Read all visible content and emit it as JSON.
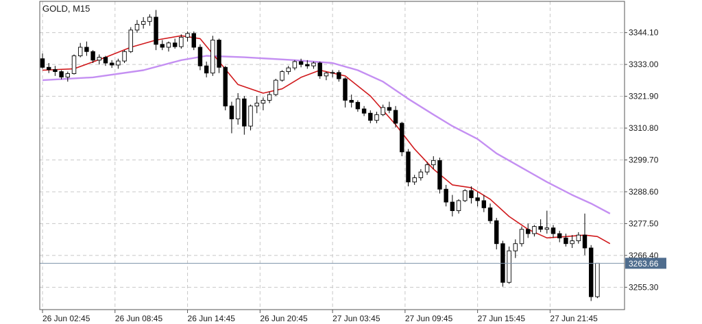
{
  "colors": {
    "background": "#ffffff",
    "axis": "#555555",
    "grid": "#c8c8c8",
    "candle_up_fill": "#ffffff",
    "candle_down_fill": "#000000",
    "candle_stroke": "#000000",
    "ma_fast": "#d0181b",
    "ma_slow": "#c48ff2",
    "bid_line": "#7d93aa",
    "bid_badge": "#4f6d8e",
    "bid_text": "#ffffff"
  },
  "chart_data": {
    "type": "candlestick",
    "title": "GOLD, M15",
    "ylim": [
      3247.5,
      3355.0
    ],
    "x_range": [
      0,
      91
    ],
    "y_ticks": [
      3344.1,
      3333.0,
      3321.9,
      3310.8,
      3299.7,
      3288.6,
      3277.5,
      3266.4,
      3255.3
    ],
    "y_tick_labels": [
      "3344.10",
      "3333.00",
      "3321.90",
      "3310.80",
      "3299.70",
      "3288.60",
      "3277.50",
      "3266.40",
      "3255.30"
    ],
    "x_ticks": [
      0,
      11.5,
      23,
      34.5,
      46,
      57.5,
      69,
      80.5
    ],
    "x_tick_labels": [
      "26 Jun 02:45",
      "26 Jun 08:45",
      "26 Jun 14:45",
      "26 Jun 20:45",
      "27 Jun 03:45",
      "27 Jun 09:45",
      "27 Jun 15:45",
      "27 Jun 21:45"
    ],
    "grid": true,
    "current_price": 3263.66,
    "current_price_label": "3263.66",
    "candles": [
      [
        3335.0,
        3336.8,
        3331.5,
        3332.0
      ],
      [
        3332.0,
        3333.5,
        3330.0,
        3331.2
      ],
      [
        3331.2,
        3332.5,
        3329.0,
        3330.5
      ],
      [
        3330.5,
        3331.0,
        3327.8,
        3328.6
      ],
      [
        3328.6,
        3330.5,
        3327.0,
        3329.8
      ],
      [
        3329.8,
        3336.5,
        3329.5,
        3336.0
      ],
      [
        3336.0,
        3340.5,
        3335.5,
        3339.0
      ],
      [
        3339.0,
        3341.0,
        3336.0,
        3337.5
      ],
      [
        3337.5,
        3338.0,
        3333.5,
        3334.5
      ],
      [
        3334.5,
        3336.5,
        3333.0,
        3335.5
      ],
      [
        3335.5,
        3336.0,
        3332.5,
        3333.5
      ],
      [
        3333.5,
        3334.5,
        3331.8,
        3332.8
      ],
      [
        3332.8,
        3335.0,
        3331.5,
        3334.2
      ],
      [
        3334.2,
        3338.0,
        3333.5,
        3337.5
      ],
      [
        3337.5,
        3346.0,
        3337.0,
        3345.0
      ],
      [
        3345.0,
        3348.5,
        3344.0,
        3347.0
      ],
      [
        3347.0,
        3349.5,
        3345.5,
        3348.0
      ],
      [
        3348.0,
        3350.5,
        3346.5,
        3349.5
      ],
      [
        3349.5,
        3352.0,
        3338.0,
        3340.0
      ],
      [
        3340.0,
        3341.5,
        3338.0,
        3339.0
      ],
      [
        3339.0,
        3341.0,
        3337.5,
        3340.5
      ],
      [
        3340.5,
        3342.0,
        3338.5,
        3339.2
      ],
      [
        3339.2,
        3343.5,
        3338.5,
        3342.5
      ],
      [
        3342.5,
        3344.5,
        3341.0,
        3343.8
      ],
      [
        3343.8,
        3344.5,
        3338.0,
        3339.0
      ],
      [
        3339.0,
        3340.0,
        3331.0,
        3332.5
      ],
      [
        3332.5,
        3334.0,
        3328.5,
        3330.0
      ],
      [
        3330.0,
        3343.0,
        3329.0,
        3341.5
      ],
      [
        3341.5,
        3342.0,
        3330.0,
        3332.0
      ],
      [
        3332.0,
        3332.5,
        3317.0,
        3318.5
      ],
      [
        3318.5,
        3320.0,
        3309.0,
        3314.0
      ],
      [
        3314.0,
        3323.0,
        3312.0,
        3321.0
      ],
      [
        3321.0,
        3322.0,
        3308.5,
        3311.5
      ],
      [
        3311.5,
        3319.0,
        3310.0,
        3318.5
      ],
      [
        3318.5,
        3322.0,
        3316.0,
        3319.5
      ],
      [
        3319.5,
        3321.5,
        3317.0,
        3320.5
      ],
      [
        3320.5,
        3323.5,
        3319.5,
        3322.5
      ],
      [
        3322.5,
        3328.0,
        3322.0,
        3327.5
      ],
      [
        3327.5,
        3331.0,
        3327.0,
        3330.5
      ],
      [
        3330.5,
        3332.5,
        3329.5,
        3331.8
      ],
      [
        3331.8,
        3334.5,
        3331.0,
        3334.0
      ],
      [
        3334.0,
        3335.0,
        3332.0,
        3333.0
      ],
      [
        3333.0,
        3334.5,
        3331.5,
        3332.5
      ],
      [
        3332.5,
        3334.0,
        3331.5,
        3333.5
      ],
      [
        3333.5,
        3334.0,
        3328.0,
        3329.0
      ],
      [
        3329.0,
        3330.5,
        3327.5,
        3330.0
      ],
      [
        3330.0,
        3331.0,
        3328.5,
        3330.2
      ],
      [
        3330.2,
        3331.0,
        3327.0,
        3328.0
      ],
      [
        3328.0,
        3328.5,
        3318.0,
        3320.5
      ],
      [
        3320.5,
        3322.5,
        3318.0,
        3319.8
      ],
      [
        3319.8,
        3320.5,
        3316.5,
        3317.5
      ],
      [
        3317.5,
        3318.5,
        3315.0,
        3316.0
      ],
      [
        3316.0,
        3317.0,
        3312.5,
        3313.5
      ],
      [
        3313.5,
        3316.5,
        3312.5,
        3315.5
      ],
      [
        3315.5,
        3319.0,
        3315.0,
        3318.0
      ],
      [
        3318.0,
        3320.0,
        3316.0,
        3317.0
      ],
      [
        3317.0,
        3318.5,
        3311.0,
        3312.5
      ],
      [
        3312.5,
        3313.0,
        3301.0,
        3302.5
      ],
      [
        3302.5,
        3303.5,
        3290.5,
        3292.0
      ],
      [
        3292.0,
        3294.5,
        3291.0,
        3293.5
      ],
      [
        3293.5,
        3296.5,
        3292.5,
        3295.5
      ],
      [
        3295.5,
        3299.0,
        3294.5,
        3298.0
      ],
      [
        3298.0,
        3301.0,
        3296.5,
        3299.5
      ],
      [
        3299.5,
        3300.5,
        3288.0,
        3289.5
      ],
      [
        3289.5,
        3291.0,
        3283.5,
        3285.0
      ],
      [
        3285.0,
        3287.5,
        3280.0,
        3282.0
      ],
      [
        3282.0,
        3286.0,
        3281.0,
        3285.5
      ],
      [
        3285.5,
        3289.5,
        3285.0,
        3289.0
      ],
      [
        3289.0,
        3290.5,
        3284.5,
        3286.5
      ],
      [
        3286.5,
        3288.5,
        3283.5,
        3285.5
      ],
      [
        3285.5,
        3287.5,
        3281.5,
        3283.0
      ],
      [
        3283.0,
        3284.5,
        3277.5,
        3278.5
      ],
      [
        3278.5,
        3279.5,
        3268.5,
        3270.5
      ],
      [
        3270.5,
        3271.5,
        3255.5,
        3257.0
      ],
      [
        3257.0,
        3269.5,
        3256.5,
        3268.0
      ],
      [
        3268.0,
        3272.0,
        3265.5,
        3270.5
      ],
      [
        3270.5,
        3276.5,
        3269.5,
        3275.5
      ],
      [
        3275.5,
        3277.5,
        3272.5,
        3274.0
      ],
      [
        3274.0,
        3277.0,
        3273.0,
        3276.5
      ],
      [
        3276.5,
        3279.0,
        3274.5,
        3275.5
      ],
      [
        3275.5,
        3282.0,
        3274.0,
        3276.0
      ],
      [
        3276.0,
        3277.0,
        3272.5,
        3274.0
      ],
      [
        3274.0,
        3275.0,
        3271.0,
        3272.5
      ],
      [
        3272.5,
        3274.0,
        3269.5,
        3270.5
      ],
      [
        3270.5,
        3273.5,
        3269.0,
        3271.5
      ],
      [
        3271.5,
        3274.5,
        3270.5,
        3273.5
      ],
      [
        3273.5,
        3281.0,
        3266.5,
        3269.0
      ],
      [
        3269.0,
        3270.0,
        3250.5,
        3252.0
      ],
      [
        3252.0,
        3263.7,
        3251.5,
        3263.66
      ]
    ],
    "ma_fast": [
      [
        0,
        3331.0
      ],
      [
        5,
        3331.5
      ],
      [
        10,
        3335.5
      ],
      [
        14,
        3339.0
      ],
      [
        18,
        3341.5
      ],
      [
        22,
        3343.0
      ],
      [
        25,
        3342.0
      ],
      [
        28,
        3334.0
      ],
      [
        31,
        3326.0
      ],
      [
        35,
        3323.0
      ],
      [
        38,
        3324.5
      ],
      [
        41,
        3328.5
      ],
      [
        44,
        3331.0
      ],
      [
        48,
        3329.0
      ],
      [
        52,
        3322.0
      ],
      [
        56,
        3312.0
      ],
      [
        59,
        3303.5
      ],
      [
        62,
        3296.5
      ],
      [
        65,
        3291.0
      ],
      [
        68,
        3290.0
      ],
      [
        71,
        3286.0
      ],
      [
        74,
        3280.0
      ],
      [
        77,
        3275.5
      ],
      [
        80,
        3272.5
      ],
      [
        83,
        3273.0
      ],
      [
        86,
        3273.5
      ],
      [
        88,
        3273.0
      ],
      [
        90,
        3270.5
      ]
    ],
    "ma_slow": [
      [
        0,
        3327.5
      ],
      [
        8,
        3328.5
      ],
      [
        16,
        3331.0
      ],
      [
        22,
        3334.5
      ],
      [
        26,
        3336.0
      ],
      [
        32,
        3335.5
      ],
      [
        40,
        3334.5
      ],
      [
        46,
        3333.5
      ],
      [
        50,
        3331.0
      ],
      [
        54,
        3327.0
      ],
      [
        58,
        3321.0
      ],
      [
        62,
        3315.5
      ],
      [
        65,
        3311.5
      ],
      [
        69,
        3307.0
      ],
      [
        72,
        3302.0
      ],
      [
        76,
        3297.0
      ],
      [
        80,
        3292.0
      ],
      [
        84,
        3287.5
      ],
      [
        87,
        3284.5
      ],
      [
        90,
        3281.0
      ]
    ]
  }
}
